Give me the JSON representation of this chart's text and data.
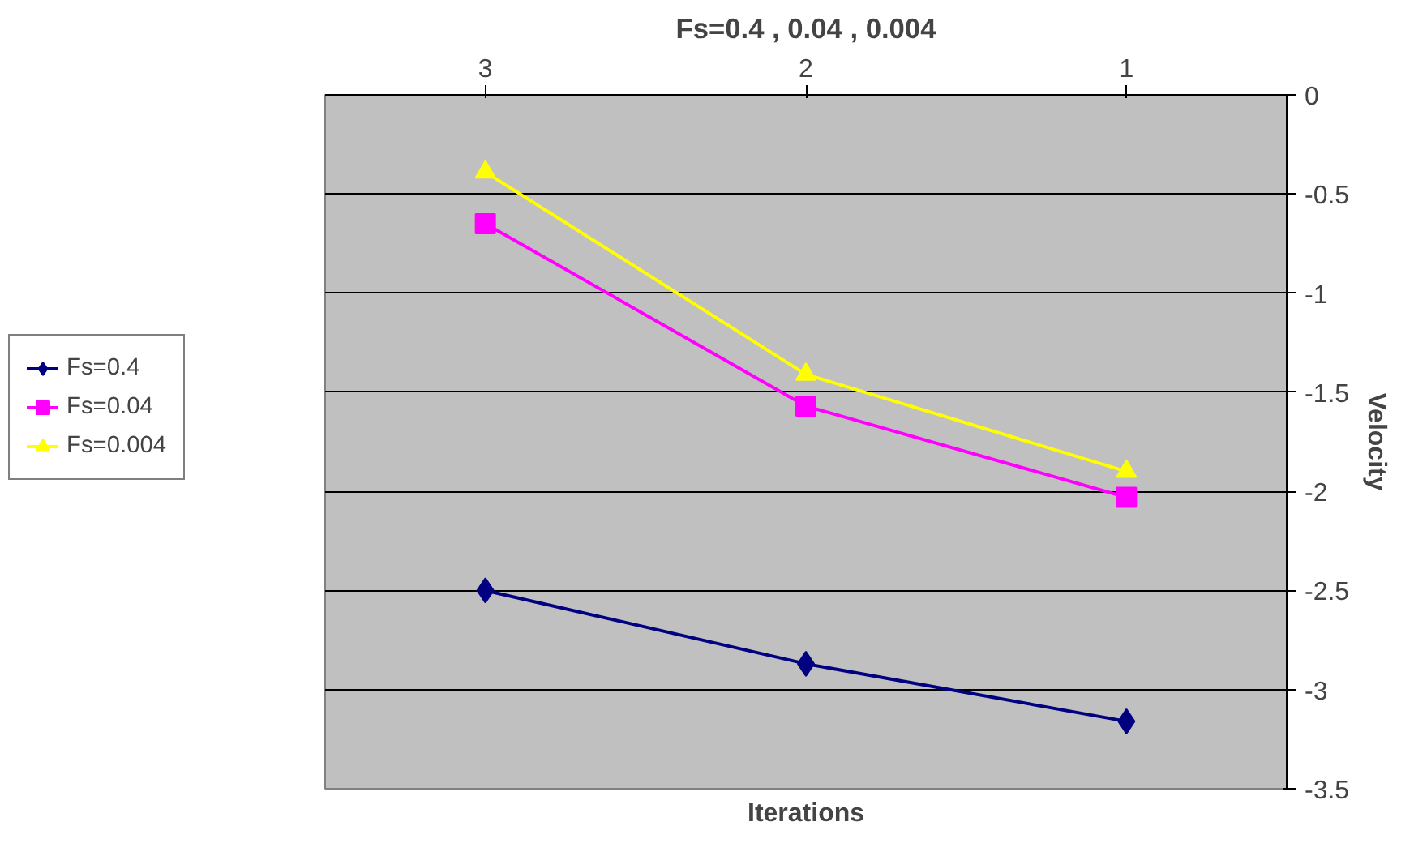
{
  "chart_data": {
    "type": "line",
    "title": "Fs=0.4 , 0.04 , 0.004",
    "xlabel": "Iterations",
    "ylabel": "Velocity",
    "categories": [
      "3",
      "2",
      "1"
    ],
    "series": [
      {
        "name": "Fs=0.4",
        "color": "#000080",
        "marker": "diamond",
        "values": [
          -2.5,
          -2.87,
          -3.16
        ]
      },
      {
        "name": "Fs=0.04",
        "color": "#ff00ff",
        "marker": "square",
        "values": [
          -0.65,
          -1.57,
          -2.03
        ]
      },
      {
        "name": "Fs=0.004",
        "color": "#ffff00",
        "marker": "triangle",
        "values": [
          -0.39,
          -1.41,
          -1.9
        ]
      }
    ],
    "ylim": [
      -3.5,
      0
    ],
    "yticks": [
      0,
      -0.5,
      -1,
      -1.5,
      -2,
      -2.5,
      -3,
      -3.5
    ],
    "grid": "y",
    "legend": "left"
  }
}
